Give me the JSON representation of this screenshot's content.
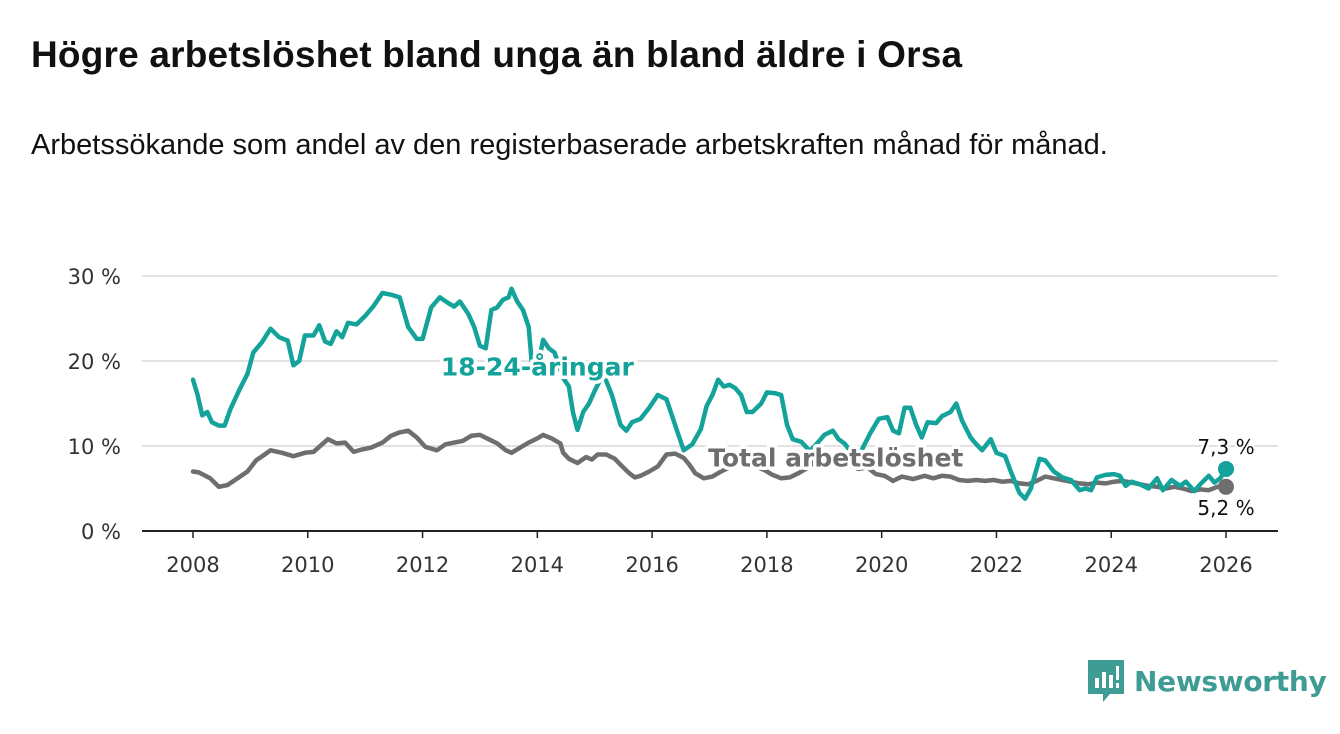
{
  "title": "Högre arbetslöshet bland unga än bland äldre i Orsa",
  "subtitle": "Arbetssökande som andel av den registerbaserade arbetskraften månad för månad.",
  "chart_data": {
    "type": "line",
    "title": "Högre arbetslöshet bland unga än bland äldre i Orsa",
    "xlabel": "",
    "ylabel": "",
    "xlim": [
      2008,
      2026
    ],
    "ylim": [
      0,
      30
    ],
    "grid": true,
    "x_ticks": [
      {
        "value": 2008,
        "label": "2008"
      },
      {
        "value": 2010,
        "label": "2010"
      },
      {
        "value": 2012,
        "label": "2012"
      },
      {
        "value": 2014,
        "label": "2014"
      },
      {
        "value": 2016,
        "label": "2016"
      },
      {
        "value": 2018,
        "label": "2018"
      },
      {
        "value": 2020,
        "label": "2020"
      },
      {
        "value": 2022,
        "label": "2022"
      },
      {
        "value": 2024,
        "label": "2024"
      },
      {
        "value": 2026,
        "label": "2026"
      }
    ],
    "y_ticks": [
      {
        "value": 0,
        "label": "0 %"
      },
      {
        "value": 10,
        "label": "10 %"
      },
      {
        "value": 20,
        "label": "20 %"
      },
      {
        "value": 30,
        "label": "30 %"
      }
    ],
    "series": [
      {
        "name": "Total arbetslöshet",
        "color": "#6e6e70",
        "end_label": "5,2 %",
        "points": [
          [
            2008.0,
            7.0
          ],
          [
            2008.1,
            6.9
          ],
          [
            2008.3,
            6.2
          ],
          [
            2008.45,
            5.2
          ],
          [
            2008.6,
            5.4
          ],
          [
            2008.8,
            6.3
          ],
          [
            2008.95,
            7.0
          ],
          [
            2009.1,
            8.3
          ],
          [
            2009.25,
            9.0
          ],
          [
            2009.35,
            9.5
          ],
          [
            2009.55,
            9.2
          ],
          [
            2009.75,
            8.8
          ],
          [
            2009.95,
            9.2
          ],
          [
            2010.1,
            9.3
          ],
          [
            2010.25,
            10.2
          ],
          [
            2010.35,
            10.8
          ],
          [
            2010.5,
            10.3
          ],
          [
            2010.65,
            10.4
          ],
          [
            2010.8,
            9.3
          ],
          [
            2010.95,
            9.6
          ],
          [
            2011.1,
            9.8
          ],
          [
            2011.3,
            10.4
          ],
          [
            2011.45,
            11.2
          ],
          [
            2011.6,
            11.6
          ],
          [
            2011.75,
            11.8
          ],
          [
            2011.9,
            11.0
          ],
          [
            2012.05,
            9.9
          ],
          [
            2012.25,
            9.5
          ],
          [
            2012.4,
            10.2
          ],
          [
            2012.55,
            10.4
          ],
          [
            2012.7,
            10.6
          ],
          [
            2012.85,
            11.2
          ],
          [
            2013.0,
            11.3
          ],
          [
            2013.15,
            10.8
          ],
          [
            2013.3,
            10.3
          ],
          [
            2013.45,
            9.5
          ],
          [
            2013.55,
            9.2
          ],
          [
            2013.7,
            9.8
          ],
          [
            2013.85,
            10.4
          ],
          [
            2014.0,
            10.9
          ],
          [
            2014.1,
            11.3
          ],
          [
            2014.25,
            10.9
          ],
          [
            2014.4,
            10.3
          ],
          [
            2014.45,
            9.2
          ],
          [
            2014.55,
            8.5
          ],
          [
            2014.7,
            8.0
          ],
          [
            2014.85,
            8.7
          ],
          [
            2014.95,
            8.4
          ],
          [
            2015.05,
            9.0
          ],
          [
            2015.2,
            9.0
          ],
          [
            2015.35,
            8.5
          ],
          [
            2015.45,
            7.8
          ],
          [
            2015.6,
            6.8
          ],
          [
            2015.7,
            6.3
          ],
          [
            2015.8,
            6.5
          ],
          [
            2015.95,
            7.0
          ],
          [
            2016.1,
            7.6
          ],
          [
            2016.25,
            9.0
          ],
          [
            2016.4,
            9.1
          ],
          [
            2016.55,
            8.6
          ],
          [
            2016.65,
            7.8
          ],
          [
            2016.75,
            6.8
          ],
          [
            2016.9,
            6.2
          ],
          [
            2017.05,
            6.4
          ],
          [
            2017.2,
            7.0
          ],
          [
            2017.35,
            7.5
          ],
          [
            2017.5,
            7.9
          ],
          [
            2017.65,
            8.1
          ],
          [
            2017.8,
            7.6
          ],
          [
            2017.95,
            7.2
          ],
          [
            2018.1,
            6.6
          ],
          [
            2018.25,
            6.2
          ],
          [
            2018.4,
            6.3
          ],
          [
            2018.55,
            6.8
          ],
          [
            2018.7,
            7.4
          ],
          [
            2018.85,
            8.3
          ],
          [
            2019.0,
            8.4
          ],
          [
            2019.15,
            8.2
          ],
          [
            2019.3,
            8.5
          ],
          [
            2019.45,
            7.7
          ],
          [
            2019.6,
            7.3
          ],
          [
            2019.75,
            7.5
          ],
          [
            2019.9,
            6.7
          ],
          [
            2020.05,
            6.5
          ],
          [
            2020.2,
            5.9
          ],
          [
            2020.35,
            6.4
          ],
          [
            2020.55,
            6.1
          ],
          [
            2020.75,
            6.5
          ],
          [
            2020.9,
            6.2
          ],
          [
            2021.05,
            6.5
          ],
          [
            2021.2,
            6.4
          ],
          [
            2021.35,
            6.0
          ],
          [
            2021.5,
            5.9
          ],
          [
            2021.65,
            6.0
          ],
          [
            2021.8,
            5.9
          ],
          [
            2021.95,
            6.0
          ],
          [
            2022.1,
            5.8
          ],
          [
            2022.25,
            5.9
          ],
          [
            2022.4,
            5.6
          ],
          [
            2022.55,
            5.5
          ],
          [
            2022.7,
            5.9
          ],
          [
            2022.85,
            6.4
          ],
          [
            2023.0,
            6.2
          ],
          [
            2023.15,
            6.0
          ],
          [
            2023.3,
            5.8
          ],
          [
            2023.45,
            5.6
          ],
          [
            2023.6,
            5.5
          ],
          [
            2023.75,
            5.7
          ],
          [
            2023.9,
            5.6
          ],
          [
            2024.05,
            5.8
          ],
          [
            2024.2,
            5.9
          ],
          [
            2024.35,
            5.7
          ],
          [
            2024.5,
            5.5
          ],
          [
            2024.65,
            5.3
          ],
          [
            2024.8,
            5.2
          ],
          [
            2024.95,
            5.0
          ],
          [
            2025.1,
            5.2
          ],
          [
            2025.25,
            5.0
          ],
          [
            2025.4,
            4.7
          ],
          [
            2025.55,
            4.9
          ],
          [
            2025.7,
            4.8
          ],
          [
            2025.85,
            5.2
          ],
          [
            2026.0,
            5.2
          ]
        ]
      },
      {
        "name": "18-24-åringar",
        "color": "#13a39a",
        "end_label": "7,3 %",
        "points": [
          [
            2008.0,
            17.8
          ],
          [
            2008.08,
            16.0
          ],
          [
            2008.16,
            13.6
          ],
          [
            2008.25,
            14.0
          ],
          [
            2008.33,
            12.8
          ],
          [
            2008.45,
            12.4
          ],
          [
            2008.55,
            12.4
          ],
          [
            2008.65,
            14.3
          ],
          [
            2008.8,
            16.5
          ],
          [
            2008.95,
            18.5
          ],
          [
            2009.05,
            21.0
          ],
          [
            2009.2,
            22.2
          ],
          [
            2009.35,
            23.8
          ],
          [
            2009.5,
            22.8
          ],
          [
            2009.65,
            22.4
          ],
          [
            2009.75,
            19.5
          ],
          [
            2009.85,
            20.0
          ],
          [
            2009.95,
            23.0
          ],
          [
            2010.1,
            23.0
          ],
          [
            2010.2,
            24.2
          ],
          [
            2010.3,
            22.3
          ],
          [
            2010.4,
            22.0
          ],
          [
            2010.5,
            23.5
          ],
          [
            2010.6,
            22.8
          ],
          [
            2010.7,
            24.5
          ],
          [
            2010.85,
            24.3
          ],
          [
            2011.0,
            25.3
          ],
          [
            2011.15,
            26.5
          ],
          [
            2011.3,
            28.0
          ],
          [
            2011.45,
            27.8
          ],
          [
            2011.6,
            27.5
          ],
          [
            2011.75,
            24.0
          ],
          [
            2011.9,
            22.6
          ],
          [
            2012.0,
            22.6
          ],
          [
            2012.15,
            26.3
          ],
          [
            2012.3,
            27.5
          ],
          [
            2012.45,
            26.8
          ],
          [
            2012.55,
            26.4
          ],
          [
            2012.65,
            27.0
          ],
          [
            2012.8,
            25.5
          ],
          [
            2012.9,
            24.0
          ],
          [
            2013.0,
            21.8
          ],
          [
            2013.1,
            21.5
          ],
          [
            2013.2,
            26.0
          ],
          [
            2013.3,
            26.3
          ],
          [
            2013.4,
            27.2
          ],
          [
            2013.5,
            27.5
          ],
          [
            2013.55,
            28.5
          ],
          [
            2013.65,
            27.0
          ],
          [
            2013.75,
            26.0
          ],
          [
            2013.85,
            24.0
          ],
          [
            2013.9,
            20.0
          ],
          [
            2014.0,
            19.0
          ],
          [
            2014.1,
            22.5
          ],
          [
            2014.2,
            21.5
          ],
          [
            2014.3,
            21.0
          ],
          [
            2014.45,
            18.0
          ],
          [
            2014.55,
            17.0
          ],
          [
            2014.62,
            14.0
          ],
          [
            2014.7,
            11.9
          ],
          [
            2014.8,
            14.0
          ],
          [
            2014.9,
            15.0
          ],
          [
            2015.0,
            16.5
          ],
          [
            2015.15,
            18.5
          ],
          [
            2015.3,
            16.0
          ],
          [
            2015.45,
            12.5
          ],
          [
            2015.55,
            11.8
          ],
          [
            2015.65,
            12.8
          ],
          [
            2015.8,
            13.2
          ],
          [
            2015.95,
            14.5
          ],
          [
            2016.1,
            16.0
          ],
          [
            2016.25,
            15.5
          ],
          [
            2016.35,
            13.5
          ],
          [
            2016.45,
            11.5
          ],
          [
            2016.55,
            9.5
          ],
          [
            2016.7,
            10.2
          ],
          [
            2016.85,
            12.0
          ],
          [
            2016.95,
            14.7
          ],
          [
            2017.05,
            16.0
          ],
          [
            2017.15,
            17.8
          ],
          [
            2017.25,
            17.0
          ],
          [
            2017.35,
            17.2
          ],
          [
            2017.45,
            16.8
          ],
          [
            2017.55,
            16.0
          ],
          [
            2017.65,
            14.0
          ],
          [
            2017.75,
            14.0
          ],
          [
            2017.9,
            15.0
          ],
          [
            2018.0,
            16.3
          ],
          [
            2018.15,
            16.2
          ],
          [
            2018.25,
            16.0
          ],
          [
            2018.35,
            12.5
          ],
          [
            2018.45,
            10.8
          ],
          [
            2018.6,
            10.5
          ],
          [
            2018.75,
            9.4
          ],
          [
            2018.9,
            10.5
          ],
          [
            2019.0,
            11.3
          ],
          [
            2019.15,
            11.8
          ],
          [
            2019.25,
            10.8
          ],
          [
            2019.35,
            10.3
          ],
          [
            2019.5,
            9.0
          ],
          [
            2019.65,
            9.5
          ],
          [
            2019.8,
            11.5
          ],
          [
            2019.95,
            13.2
          ],
          [
            2020.1,
            13.4
          ],
          [
            2020.2,
            11.8
          ],
          [
            2020.3,
            11.5
          ],
          [
            2020.4,
            14.5
          ],
          [
            2020.5,
            14.5
          ],
          [
            2020.6,
            12.5
          ],
          [
            2020.7,
            11.0
          ],
          [
            2020.8,
            12.8
          ],
          [
            2020.95,
            12.7
          ],
          [
            2021.05,
            13.5
          ],
          [
            2021.2,
            14.0
          ],
          [
            2021.3,
            15.0
          ],
          [
            2021.4,
            13.0
          ],
          [
            2021.55,
            11.0
          ],
          [
            2021.65,
            10.2
          ],
          [
            2021.75,
            9.5
          ],
          [
            2021.9,
            10.8
          ],
          [
            2022.0,
            9.2
          ],
          [
            2022.15,
            8.8
          ],
          [
            2022.25,
            7.0
          ],
          [
            2022.4,
            4.5
          ],
          [
            2022.5,
            3.8
          ],
          [
            2022.6,
            5.0
          ],
          [
            2022.75,
            8.5
          ],
          [
            2022.85,
            8.3
          ],
          [
            2023.0,
            7.0
          ],
          [
            2023.15,
            6.3
          ],
          [
            2023.3,
            6.0
          ],
          [
            2023.45,
            4.8
          ],
          [
            2023.55,
            5.0
          ],
          [
            2023.65,
            4.8
          ],
          [
            2023.75,
            6.3
          ],
          [
            2023.9,
            6.6
          ],
          [
            2024.05,
            6.7
          ],
          [
            2024.15,
            6.5
          ],
          [
            2024.25,
            5.3
          ],
          [
            2024.35,
            5.8
          ],
          [
            2024.5,
            5.5
          ],
          [
            2024.65,
            5.0
          ],
          [
            2024.8,
            6.2
          ],
          [
            2024.9,
            4.8
          ],
          [
            2025.05,
            6.0
          ],
          [
            2025.2,
            5.3
          ],
          [
            2025.3,
            5.8
          ],
          [
            2025.45,
            4.7
          ],
          [
            2025.55,
            5.5
          ],
          [
            2025.7,
            6.5
          ],
          [
            2025.8,
            5.7
          ],
          [
            2025.9,
            6.2
          ],
          [
            2026.0,
            7.3
          ]
        ]
      }
    ],
    "annotations": [
      {
        "series": "18-24-åringar",
        "text": "18-24-åringar",
        "x": 2014.0,
        "y": 18.3
      },
      {
        "series": "Total arbetslöshet",
        "text": "Total arbetslöshet",
        "x": 2019.2,
        "y": 7.6
      }
    ]
  },
  "brand": {
    "name": "Newsworthy",
    "color": "#3f9c95"
  }
}
